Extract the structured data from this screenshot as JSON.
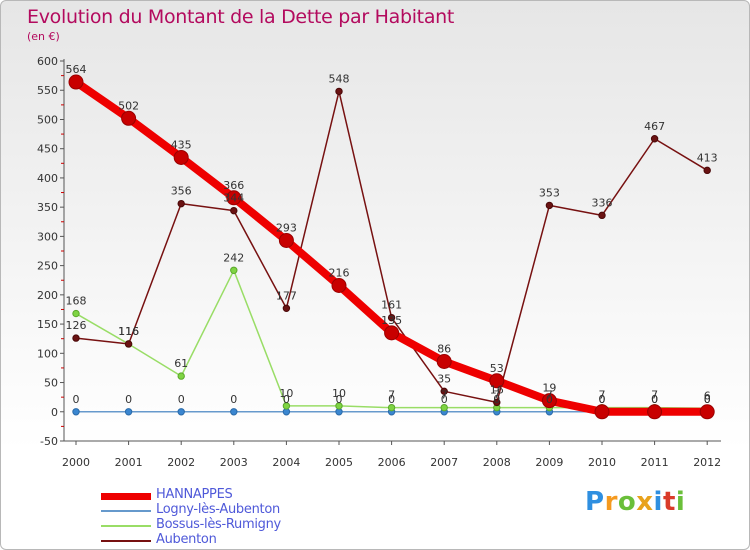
{
  "chart_data": {
    "type": "line",
    "title": "Evolution du Montant de la Dette par Habitant",
    "subtitle": "(en €)",
    "x": [
      "2000",
      "2001",
      "2002",
      "2003",
      "2004",
      "2005",
      "2006",
      "2007",
      "2008",
      "2009",
      "2010",
      "2011",
      "2012"
    ],
    "ylim": [
      -50,
      600
    ],
    "yticks": [
      -50,
      0,
      50,
      100,
      150,
      200,
      250,
      300,
      350,
      400,
      450,
      500,
      550,
      600
    ],
    "grid": false,
    "legend_position": "bottom-left",
    "series": [
      {
        "name": "HANNAPPES",
        "color": "#ee0000",
        "values": [
          564,
          502,
          435,
          366,
          293,
          216,
          135,
          86,
          53,
          19,
          0,
          0,
          0
        ]
      },
      {
        "name": "Logny-lès-Aubenton",
        "color": "#6699cc",
        "values": [
          0,
          0,
          0,
          0,
          0,
          0,
          0,
          0,
          0,
          0,
          0,
          0,
          0
        ]
      },
      {
        "name": "Bossus-lès-Rumigny",
        "color": "#99dd66",
        "values": [
          168,
          116,
          61,
          242,
          10,
          10,
          7,
          7,
          7,
          7,
          7,
          7,
          6
        ]
      },
      {
        "name": "Aubenton",
        "color": "#771111",
        "values": [
          126,
          116,
          356,
          344,
          177,
          548,
          161,
          35,
          16,
          353,
          336,
          467,
          413
        ]
      }
    ]
  },
  "brand": {
    "letters": [
      "P",
      "r",
      "o",
      "x",
      "i",
      "t",
      "i"
    ],
    "colors": [
      "#2f8fe0",
      "#f59a1f",
      "#6abf3a",
      "#e8a21c",
      "#2f8fe0",
      "#d93b2a",
      "#6abf3a"
    ]
  }
}
